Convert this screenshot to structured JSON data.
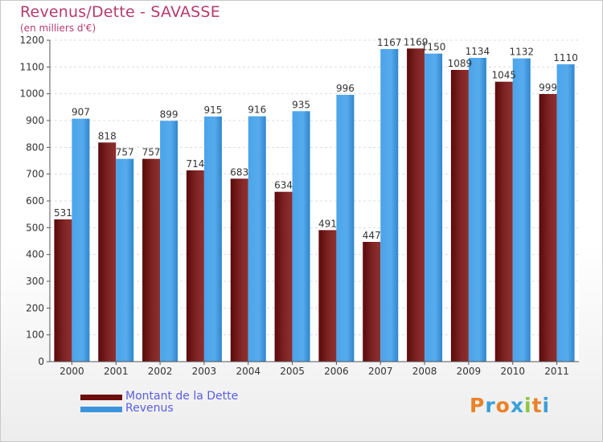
{
  "chart_data": {
    "type": "bar",
    "title": "Revenus/Dette - SAVASSE",
    "subtitle": "(en milliers d'€)",
    "categories": [
      "2000",
      "2001",
      "2002",
      "2003",
      "2004",
      "2005",
      "2006",
      "2007",
      "2008",
      "2009",
      "2010",
      "2011"
    ],
    "series": [
      {
        "name": "Montant de la Dette",
        "color": "#7a1f1f",
        "values": [
          531,
          818,
          757,
          714,
          683,
          634,
          491,
          447,
          1169,
          1089,
          1045,
          999
        ]
      },
      {
        "name": "Revenus",
        "color": "#3b97e0",
        "values": [
          907,
          757,
          899,
          915,
          916,
          935,
          996,
          1167,
          1150,
          1134,
          1132,
          1110
        ]
      }
    ],
    "ylim": [
      0,
      1200
    ],
    "yticks": [
      0,
      100,
      200,
      300,
      400,
      500,
      600,
      700,
      800,
      900,
      1000,
      1100,
      1200
    ],
    "grid": true,
    "legend": "bottom-left"
  },
  "legend": [
    {
      "label": "Montant de la Dette",
      "color": "#6e0d0d"
    },
    {
      "label": "Revenus",
      "color": "#3a95dc"
    }
  ],
  "logo": {
    "letters": [
      "P",
      "r",
      "o",
      "x",
      "i",
      "t",
      "i"
    ],
    "colors": [
      "#e8832a",
      "#3aa0d8",
      "#e8832a",
      "#3aa0d8",
      "#8cc63f",
      "#e8832a",
      "#3aa0d8"
    ]
  }
}
